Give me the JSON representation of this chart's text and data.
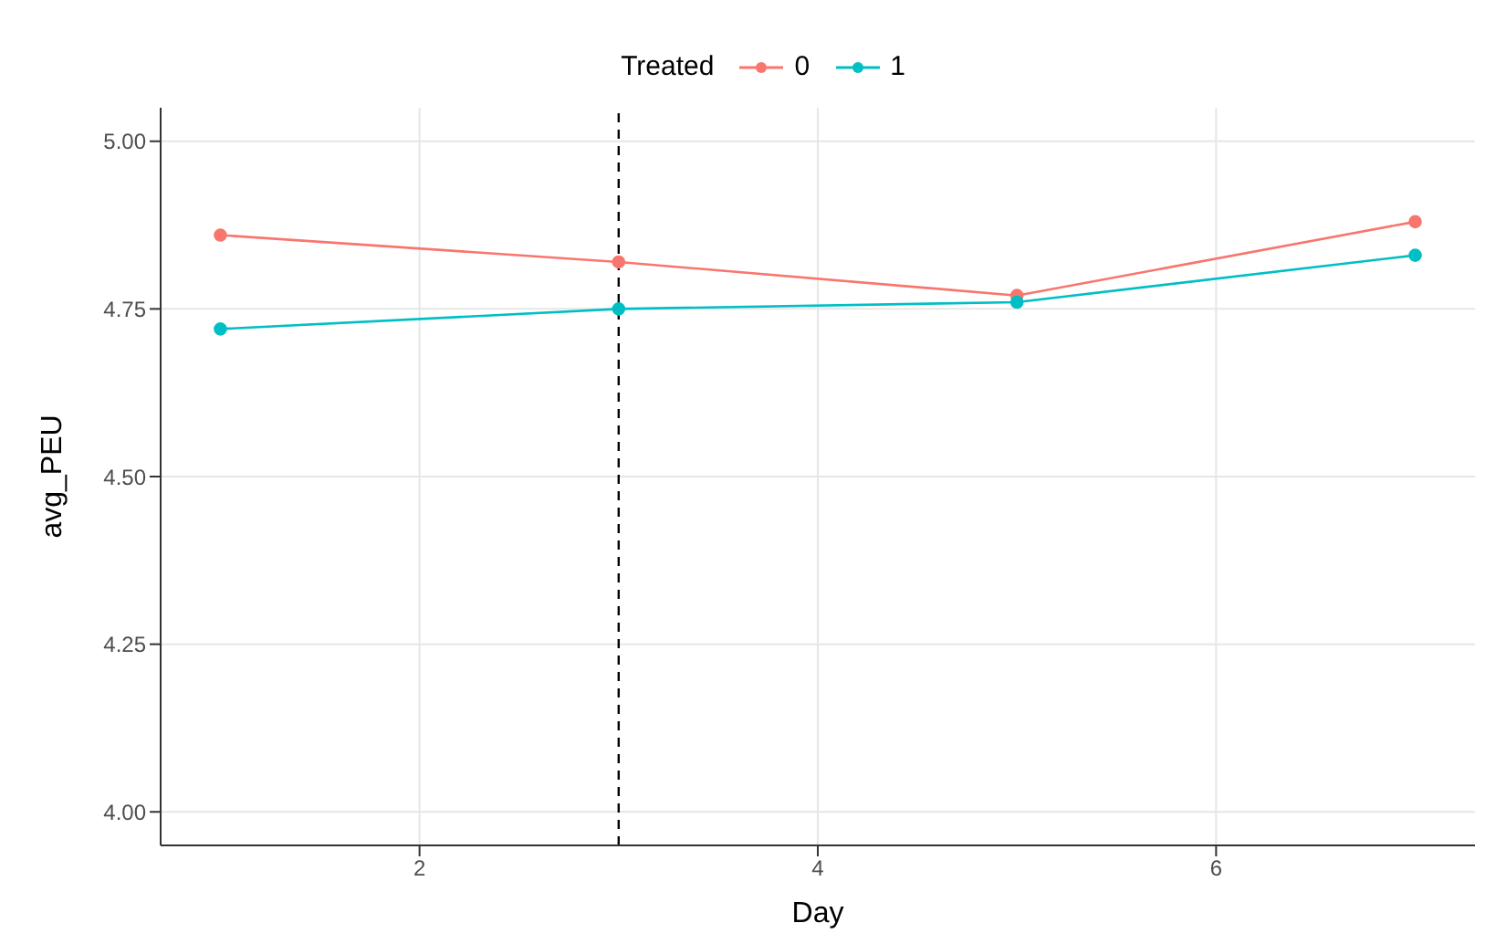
{
  "chart_data": {
    "type": "line",
    "xlabel": "Day",
    "ylabel": "avg_PEU",
    "legend_title": "Treated",
    "x": [
      1,
      3,
      5,
      7
    ],
    "series": [
      {
        "name": "0",
        "color": "#f8766d",
        "values": [
          4.86,
          4.82,
          4.77,
          4.88
        ]
      },
      {
        "name": "1",
        "color": "#00bfc4",
        "values": [
          4.72,
          4.75,
          4.76,
          4.83
        ]
      }
    ],
    "xlim": [
      0.7,
      7.3
    ],
    "xticks": [
      2,
      4,
      6
    ],
    "ylim": [
      3.95,
      5.05
    ],
    "yticks": [
      {
        "value": 4,
        "label": "4.00"
      },
      {
        "value": 4.25,
        "label": "4.25"
      },
      {
        "value": 4.5,
        "label": "4.50"
      },
      {
        "value": 4.75,
        "label": "4.75"
      },
      {
        "value": 5,
        "label": "5.00"
      }
    ],
    "ref_lines": [
      {
        "axis": "x",
        "value": 3,
        "color": "#000000",
        "line_style": "dashed"
      }
    ],
    "grid": true,
    "legend": "top",
    "marker": "circle",
    "line_style": "solid"
  }
}
